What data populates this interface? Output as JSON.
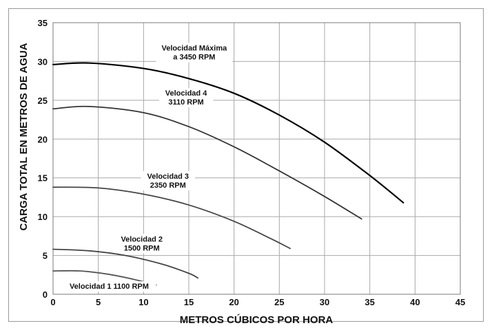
{
  "chart_data": {
    "type": "line",
    "xlabel": "METROS CÚBICOS POR HORA",
    "ylabel": "CARGA TOTAL EN METROS DE AGUA",
    "xlim": [
      0,
      45
    ],
    "ylim": [
      0,
      35
    ],
    "xticks": [
      "0",
      "5",
      "10",
      "15",
      "20",
      "25",
      "30",
      "35",
      "40",
      "45"
    ],
    "yticks": [
      "0",
      "5",
      "10",
      "15",
      "20",
      "25",
      "30",
      "35"
    ],
    "grid": true,
    "series": [
      {
        "name": "Velocidad Máxima a 3450 RPM",
        "label_lines": [
          "Velocidad Máxima",
          "a 3450 RPM"
        ],
        "color": "#000000",
        "x": [
          0,
          4,
          10,
          15,
          20,
          25,
          30,
          35,
          38.7
        ],
        "y": [
          29.6,
          29.8,
          29.1,
          27.8,
          25.9,
          23.1,
          19.6,
          15.3,
          11.8
        ]
      },
      {
        "name": "Velocidad 4 3110 RPM",
        "label_lines": [
          "Velocidad 4",
          "3110 RPM"
        ],
        "color": "#333333",
        "x": [
          0,
          4,
          10,
          15,
          20,
          25,
          30,
          34.1
        ],
        "y": [
          23.9,
          24.2,
          23.4,
          21.6,
          19.0,
          15.9,
          12.6,
          9.7
        ]
      },
      {
        "name": "Velocidad 3 2350 RPM",
        "label_lines": [
          "Velocidad 3",
          "2350 RPM"
        ],
        "color": "#444444",
        "x": [
          0,
          5,
          10,
          15,
          20,
          24,
          26.2
        ],
        "y": [
          13.8,
          13.7,
          12.9,
          11.5,
          9.4,
          7.2,
          5.9
        ]
      },
      {
        "name": "Velocidad 2 1500 RPM",
        "label_lines": [
          "Velocidad 2",
          "1500 RPM"
        ],
        "color": "#444444",
        "x": [
          0,
          4,
          8,
          12,
          15,
          16
        ],
        "y": [
          5.8,
          5.6,
          5.0,
          3.9,
          2.7,
          2.1
        ]
      },
      {
        "name": "Velocidad 1 1100 RPM",
        "label_lines": [
          "Velocidad 1 1100 RPM"
        ],
        "color": "#555555",
        "x": [
          0,
          3,
          6,
          9,
          11.4
        ],
        "y": [
          3.0,
          3.0,
          2.6,
          1.9,
          1.2
        ]
      }
    ]
  }
}
